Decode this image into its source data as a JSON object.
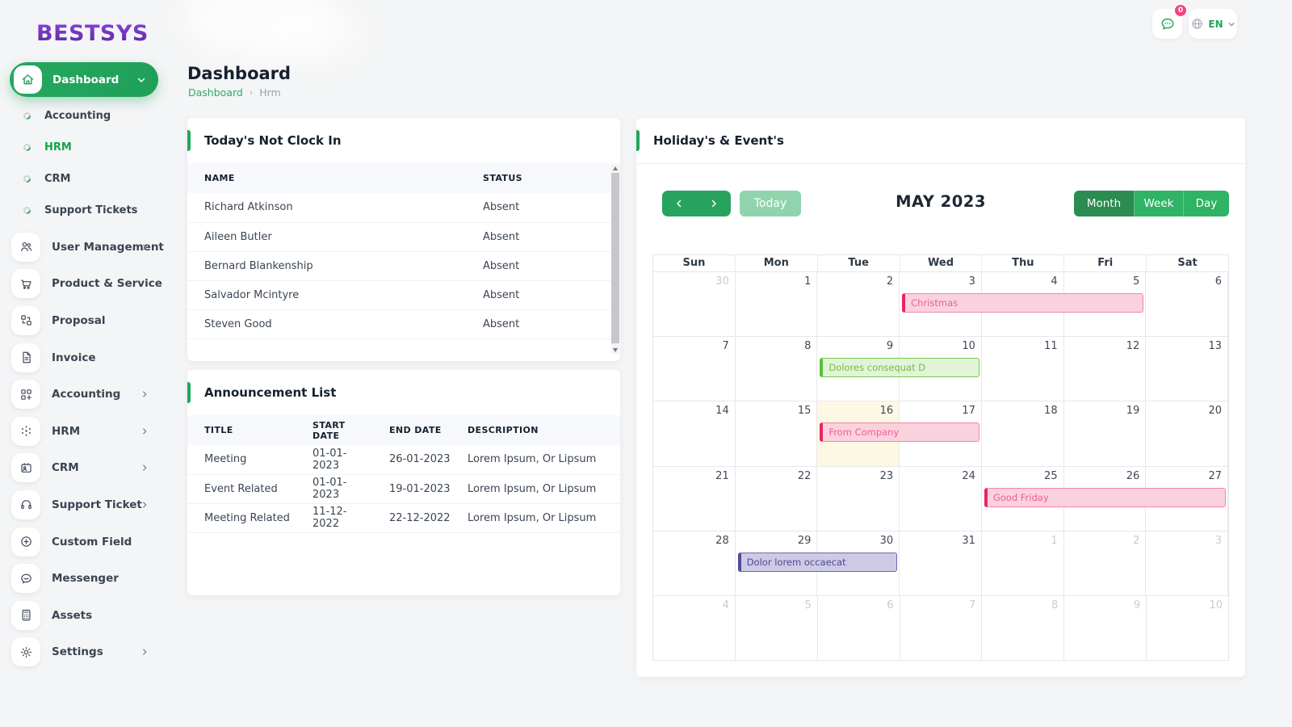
{
  "brand": {
    "logo": "BESTSYS"
  },
  "header": {
    "chat_badge": "0",
    "language": "EN"
  },
  "page": {
    "title": "Dashboard",
    "breadcrumb": [
      "Dashboard",
      "Hrm"
    ]
  },
  "sidebar": {
    "dashboard_label": "Dashboard",
    "submenu": [
      {
        "label": "Accounting",
        "active": false
      },
      {
        "label": "HRM",
        "active": true
      },
      {
        "label": "CRM",
        "active": false
      },
      {
        "label": "Support Tickets",
        "active": false
      }
    ],
    "items": [
      {
        "label": "User Management",
        "icon": "users-icon",
        "chevron": true
      },
      {
        "label": "Product & Service",
        "icon": "cart-icon",
        "chevron": false
      },
      {
        "label": "Proposal",
        "icon": "proposal-icon",
        "chevron": false
      },
      {
        "label": "Invoice",
        "icon": "invoice-icon",
        "chevron": false
      },
      {
        "label": "Accounting",
        "icon": "accounting-icon",
        "chevron": true
      },
      {
        "label": "HRM",
        "icon": "hrm-icon",
        "chevron": true
      },
      {
        "label": "CRM",
        "icon": "crm-icon",
        "chevron": true
      },
      {
        "label": "Support Ticket",
        "icon": "headset-icon",
        "chevron": true
      },
      {
        "label": "Custom Field",
        "icon": "plus-circle-icon",
        "chevron": false
      },
      {
        "label": "Messenger",
        "icon": "messenger-icon",
        "chevron": false
      },
      {
        "label": "Assets",
        "icon": "calculator-icon",
        "chevron": false
      },
      {
        "label": "Settings",
        "icon": "gear-icon",
        "chevron": true
      }
    ]
  },
  "not_clock_in": {
    "title": "Today's Not Clock In",
    "columns": [
      "NAME",
      "STATUS"
    ],
    "rows": [
      [
        "Richard Atkinson",
        "Absent"
      ],
      [
        "Aileen Butler",
        "Absent"
      ],
      [
        "Bernard Blankenship",
        "Absent"
      ],
      [
        "Salvador Mcintyre",
        "Absent"
      ],
      [
        "Steven Good",
        "Absent"
      ]
    ]
  },
  "announcements": {
    "title": "Announcement List",
    "columns": [
      "TITLE",
      "START DATE",
      "END DATE",
      "DESCRIPTION"
    ],
    "rows": [
      [
        "Meeting",
        "01-01-2023",
        "26-01-2023",
        "Lorem Ipsum, Or Lipsum"
      ],
      [
        "Event Related",
        "01-01-2023",
        "19-01-2023",
        "Lorem Ipsum, Or Lipsum"
      ],
      [
        "Meeting Related",
        "11-12-2022",
        "22-12-2022",
        "Lorem Ipsum, Or Lipsum"
      ]
    ]
  },
  "calendar": {
    "title": "Holiday's & Event's",
    "month_label": "MAY 2023",
    "today_label": "Today",
    "views": [
      "Month",
      "Week",
      "Day"
    ],
    "active_view": "Month",
    "weekdays": [
      "Sun",
      "Mon",
      "Tue",
      "Wed",
      "Thu",
      "Fri",
      "Sat"
    ],
    "weeks": [
      [
        {
          "d": 30,
          "muted": true
        },
        {
          "d": 1
        },
        {
          "d": 2
        },
        {
          "d": 3
        },
        {
          "d": 4
        },
        {
          "d": 5
        },
        {
          "d": 6
        }
      ],
      [
        {
          "d": 7
        },
        {
          "d": 8
        },
        {
          "d": 9
        },
        {
          "d": 10
        },
        {
          "d": 11
        },
        {
          "d": 12
        },
        {
          "d": 13
        }
      ],
      [
        {
          "d": 14
        },
        {
          "d": 15
        },
        {
          "d": 16,
          "today": true
        },
        {
          "d": 17
        },
        {
          "d": 18
        },
        {
          "d": 19
        },
        {
          "d": 20
        }
      ],
      [
        {
          "d": 21
        },
        {
          "d": 22
        },
        {
          "d": 23
        },
        {
          "d": 24
        },
        {
          "d": 25
        },
        {
          "d": 26
        },
        {
          "d": 27
        }
      ],
      [
        {
          "d": 28
        },
        {
          "d": 29
        },
        {
          "d": 30
        },
        {
          "d": 31
        },
        {
          "d": 1,
          "muted": true
        },
        {
          "d": 2,
          "muted": true
        },
        {
          "d": 3,
          "muted": true
        }
      ],
      [
        {
          "d": 4,
          "muted": true
        },
        {
          "d": 5,
          "muted": true
        },
        {
          "d": 6,
          "muted": true
        },
        {
          "d": 7,
          "muted": true
        },
        {
          "d": 8,
          "muted": true
        },
        {
          "d": 9,
          "muted": true
        },
        {
          "d": 10,
          "muted": true
        }
      ]
    ],
    "events": [
      {
        "label": "Christmas",
        "week": 0,
        "col": 3,
        "span": 3,
        "color": "pink"
      },
      {
        "label": "Dolores consequat D",
        "week": 1,
        "col": 2,
        "span": 2,
        "color": "green"
      },
      {
        "label": "From Company",
        "week": 2,
        "col": 2,
        "span": 2,
        "color": "pink"
      },
      {
        "label": "Good Friday",
        "week": 3,
        "col": 4,
        "span": 3,
        "color": "pink"
      },
      {
        "label": "Dolor lorem occaecat",
        "week": 4,
        "col": 1,
        "span": 2,
        "color": "purple"
      }
    ]
  },
  "colors": {
    "primary_green": "#22a75b",
    "dark_green_active": "#2b8b50",
    "light_green_today_btn": "#90d4ad",
    "pink_event": "#e82560",
    "green_event": "#58c236",
    "purple_event": "#524aa0",
    "today_cell": "#fcf8e3",
    "badge_pink": "#f5427c",
    "logo_purple": "#6d34c8"
  }
}
